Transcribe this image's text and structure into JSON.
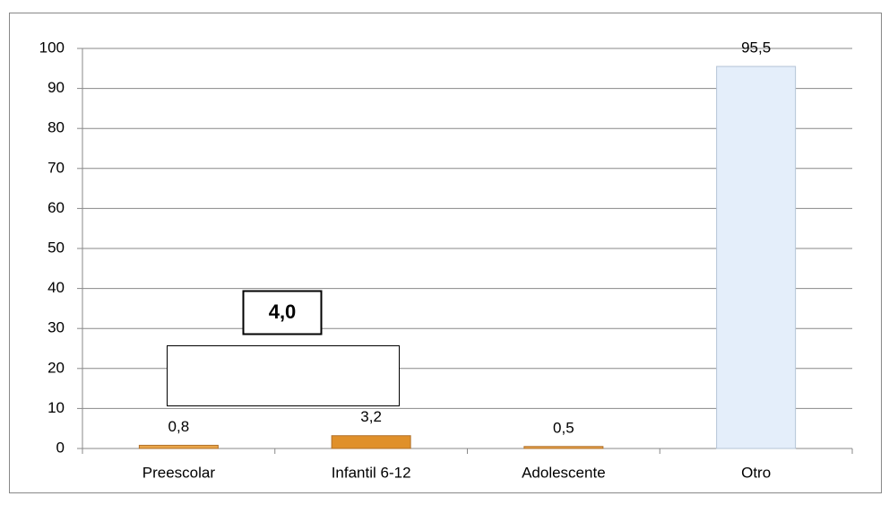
{
  "chart_data": {
    "type": "bar",
    "categories": [
      "Preescolar",
      "Infantil 6-12",
      "Adolescente",
      "Otro"
    ],
    "values": [
      0.8,
      3.2,
      0.5,
      95.5
    ],
    "value_labels": [
      "0,8",
      "3,2",
      "0,5",
      "95,5"
    ],
    "colors": [
      "#e9a54a",
      "#e0902a",
      "#e9a54a",
      "#e4eefa"
    ],
    "ylim": [
      0,
      100
    ],
    "yticks": [
      0,
      10,
      20,
      30,
      40,
      50,
      60,
      70,
      80,
      90,
      100
    ],
    "grid": true,
    "annotation": "4,0"
  }
}
